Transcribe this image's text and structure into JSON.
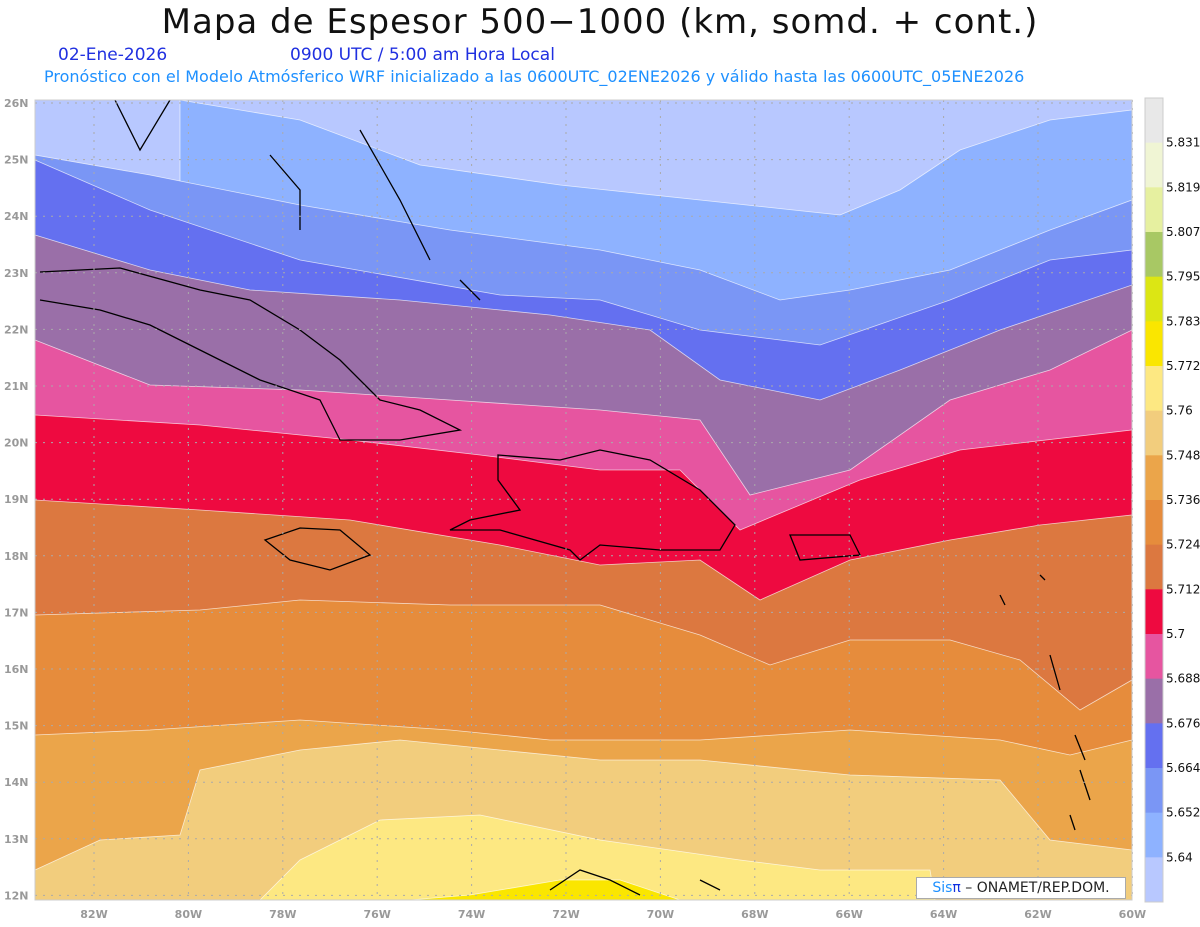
{
  "header": {
    "title": "Mapa de Espesor 500−1000 (km, somd. + cont.)",
    "date": "02-Ene-2026",
    "time": "0900 UTC / 5:00 am Hora Local",
    "subtitle": "Pronóstico con el Modelo Atmósferico WRF inicializado a las 0600UTC_02ENE2026 y válido hasta las  0600UTC_05ENE2026"
  },
  "map": {
    "lat_labels": [
      "26N",
      "25N",
      "24N",
      "23N",
      "22N",
      "21N",
      "20N",
      "19N",
      "18N",
      "17N",
      "16N",
      "15N",
      "14N",
      "13N",
      "12N"
    ],
    "lon_labels": [
      "82W",
      "80W",
      "78W",
      "76W",
      "74W",
      "72W",
      "70W",
      "68W",
      "66W",
      "64W",
      "62W",
      "60W"
    ]
  },
  "colorbar": {
    "labels": [
      "5.831",
      "5.819",
      "5.807",
      "5.795",
      "5.783",
      "5.772",
      "5.76",
      "5.748",
      "5.736",
      "5.724",
      "5.712",
      "5.7",
      "5.688",
      "5.676",
      "5.664",
      "5.652",
      "5.64"
    ],
    "colors_top_to_bottom": [
      "#e8e8e8",
      "#f0f5d4",
      "#e6f0a0",
      "#a8c864",
      "#dce614",
      "#fae600",
      "#fde882",
      "#f2cd7d",
      "#eba54a",
      "#e68c3c",
      "#dc7840",
      "#ee0a40",
      "#e655a0",
      "#9a6fa8",
      "#6470f0",
      "#7a96f5",
      "#8eb2ff",
      "#b8c8ff"
    ]
  },
  "logo": {
    "sis": "Sis",
    "pi": "π",
    "rest": " – ONAMET/REP.DOM."
  }
}
